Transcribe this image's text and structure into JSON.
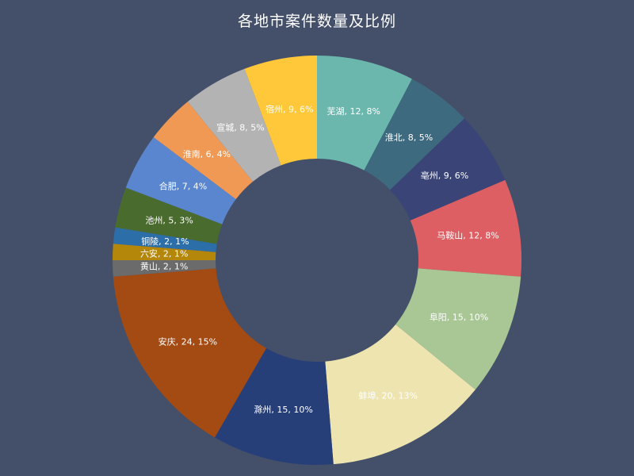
{
  "chart_data": {
    "type": "pie",
    "title": "各地市案件数量及比例",
    "categories": [
      "芜湖",
      "淮北",
      "亳州",
      "马鞍山",
      "阜阳",
      "蚌埠",
      "滁州",
      "安庆",
      "黄山",
      "六安",
      "铜陵",
      "池州",
      "合肥",
      "淮南",
      "宣城",
      "宿州"
    ],
    "values": [
      12,
      8,
      9,
      12,
      15,
      20,
      15,
      24,
      2,
      2,
      2,
      5,
      7,
      6,
      8,
      9
    ],
    "percents": [
      "8%",
      "5%",
      "6%",
      "8%",
      "10%",
      "13%",
      "10%",
      "15%",
      "1%",
      "1%",
      "1%",
      "3%",
      "4%",
      "4%",
      "5%",
      "6%"
    ],
    "labels": [
      "芜湖, 12, 8%",
      "淮北, 8, 5%",
      "亳州, 9, 6%",
      "马鞍山, 12, 8%",
      "阜阳, 15, 10%",
      "蚌埠, 20, 13%",
      "滁州, 15, 10%",
      "安庆, 24, 15%",
      "黄山, 2, 1%",
      "六安, 2, 1%",
      "铜陵, 2, 1%",
      "池州, 5, 3%",
      "合肥, 7, 4%",
      "淮南, 6, 4%",
      "宣城, 8, 5%",
      "宿州, 9, 6%"
    ],
    "colors": [
      "#6bb7ad",
      "#3e6a7f",
      "#3a4477",
      "#dd5f63",
      "#a9c794",
      "#ede4b0",
      "#273f78",
      "#a44a13",
      "#6b6b6b",
      "#b4860a",
      "#2c6ea8",
      "#4a6b2e",
      "#5a86cf",
      "#ef9955",
      "#b3b3b3",
      "#ffc83a"
    ],
    "label_colors": [
      "#ffffff",
      "#ffffff",
      "#ffffff",
      "#ffffff",
      "#ffffff",
      "#ffffff",
      "#ffffff",
      "#ffffff",
      "#ffffff",
      "#ffffff",
      "#ffffff",
      "#ffffff",
      "#ffffff",
      "#ffffff",
      "#ffffff",
      "#ffffff"
    ],
    "start_angle_deg": 0,
    "direction": "clockwise",
    "donut": true,
    "legend": "none",
    "background": "#444f69"
  }
}
